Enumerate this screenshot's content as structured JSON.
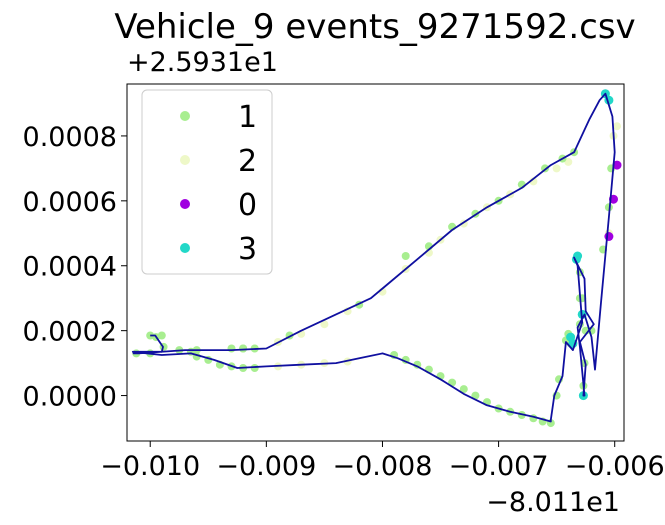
{
  "chart_data": {
    "type": "scatter",
    "title": "Vehicle_9 events_9271592.csv",
    "xlabel": "",
    "ylabel": "",
    "x_offset_label": "−8.011e1",
    "y_offset_label": "+2.5931e1",
    "xlim": [
      -0.0102,
      -0.00592
    ],
    "ylim": [
      -0.00014,
      0.00096
    ],
    "x_ticks": [
      -0.01,
      -0.009,
      -0.008,
      -0.007,
      -0.006
    ],
    "x_tick_labels": [
      "−0.010",
      "−0.009",
      "−0.008",
      "−0.007",
      "−0.006"
    ],
    "y_ticks": [
      0.0,
      0.0002,
      0.0004,
      0.0006,
      0.0008
    ],
    "y_tick_labels": [
      "0.0000",
      "0.0002",
      "0.0004",
      "0.0006",
      "0.0008"
    ],
    "grid": false,
    "legend_position": "top-left",
    "legend": [
      {
        "label": "1",
        "color": "#a8ee90"
      },
      {
        "label": "2",
        "color": "#eef8c8"
      },
      {
        "label": "0",
        "color": "#a000e0"
      },
      {
        "label": "3",
        "color": "#22d8c8"
      }
    ],
    "path_color": "#1010a0",
    "path": [
      [
        -0.01,
        0.000185
      ],
      [
        -0.009957,
        0.000185
      ],
      [
        -0.00989,
        0.00015
      ],
      [
        -0.0099,
        0.000135
      ],
      [
        -0.01015,
        0.000135
      ],
      [
        -0.0099,
        0.000125
      ],
      [
        -0.00965,
        0.00013
      ],
      [
        -0.00945,
        0.00011
      ],
      [
        -0.00925,
        8.5e-05
      ],
      [
        -0.009,
        9e-05
      ],
      [
        -0.0087,
        9.5e-05
      ],
      [
        -0.0084,
        0.0001
      ],
      [
        -0.0082,
        0.000115
      ],
      [
        -0.008,
        0.00013
      ],
      [
        -0.00787,
        0.000115
      ],
      [
        -0.0077,
        9e-05
      ],
      [
        -0.0075,
        5e-05
      ],
      [
        -0.0073,
        5e-06
      ],
      [
        -0.0071,
        -3e-05
      ],
      [
        -0.0069,
        -5e-05
      ],
      [
        -0.0067,
        -6.5e-05
      ],
      [
        -0.00655,
        -8e-05
      ],
      [
        -0.00655,
        -7.5e-05
      ],
      [
        -0.00652,
        0.0
      ],
      [
        -0.00645,
        6e-05
      ],
      [
        -0.00642,
        0.000165
      ],
      [
        -0.00636,
        0.00014
      ],
      [
        -0.00628,
        0.000225
      ],
      [
        -0.00632,
        0.0004
      ],
      [
        -0.00635,
        0.000425
      ],
      [
        -0.00626,
        0.00036
      ],
      [
        -0.00625,
        0.00026
      ],
      [
        -0.00618,
        0.00022
      ],
      [
        -0.0063,
        0.000165
      ],
      [
        -0.00625,
        9.5e-05
      ],
      [
        -0.00627,
        0.0
      ],
      [
        -0.00626,
        0.0
      ],
      [
        -0.0063,
        0.00015
      ],
      [
        -0.00632,
        0.00021
      ],
      [
        -0.00626,
        0.00025
      ],
      [
        -0.0062,
        0.00018
      ],
      [
        -0.00617,
        8e-05
      ],
      [
        -0.00612,
        0.00028
      ],
      [
        -0.00605,
        0.00055
      ],
      [
        -0.006,
        0.00075
      ],
      [
        -0.00602,
        0.00086
      ],
      [
        -0.00608,
        0.00093
      ],
      [
        -0.00613,
        0.00091
      ],
      [
        -0.00622,
        0.00085
      ],
      [
        -0.00635,
        0.00075
      ],
      [
        -0.00655,
        0.00071
      ],
      [
        -0.0068,
        0.00064
      ],
      [
        -0.0071,
        0.00058
      ],
      [
        -0.0074,
        0.00051
      ],
      [
        -0.0077,
        0.00042
      ],
      [
        -0.008,
        0.00033
      ],
      [
        -0.0081,
        0.0003
      ],
      [
        -0.0084,
        0.00025
      ],
      [
        -0.0087,
        0.0002
      ],
      [
        -0.009,
        0.000145
      ],
      [
        -0.0093,
        0.00014
      ],
      [
        -0.0097,
        0.00014
      ],
      [
        -0.0101,
        0.00013
      ],
      [
        -0.01015,
        0.00013
      ]
    ],
    "series": [
      {
        "name": "1",
        "color": "#a8ee90",
        "points": [
          [
            -0.01,
            0.000185
          ],
          [
            -0.00995,
            0.00018
          ],
          [
            -0.0099,
            0.000185
          ],
          [
            -0.009885,
            0.00015
          ],
          [
            -0.00975,
            0.00014
          ],
          [
            -0.00965,
            0.000135
          ],
          [
            -0.0096,
            0.00012
          ],
          [
            -0.0095,
            0.00011
          ],
          [
            -0.0094,
            9.5e-05
          ],
          [
            -0.0093,
            9e-05
          ],
          [
            -0.0092,
            8.5e-05
          ],
          [
            -0.0091,
            8.5e-05
          ],
          [
            -0.0093,
            0.000145
          ],
          [
            -0.0092,
            0.000145
          ],
          [
            -0.0091,
            0.000145
          ],
          [
            -0.0079,
            0.000125
          ],
          [
            -0.0078,
            0.00011
          ],
          [
            -0.0077,
            9.5e-05
          ],
          [
            -0.0076,
            8e-05
          ],
          [
            -0.0075,
            6e-05
          ],
          [
            -0.0074,
            4e-05
          ],
          [
            -0.0073,
            2e-05
          ],
          [
            -0.0072,
            0.0
          ],
          [
            -0.0071,
            -2e-05
          ],
          [
            -0.007,
            -4e-05
          ],
          [
            -0.0069,
            -5e-05
          ],
          [
            -0.0068,
            -6e-05
          ],
          [
            -0.0067,
            -7e-05
          ],
          [
            -0.00662,
            -8e-05
          ],
          [
            -0.00655,
            -8.5e-05
          ],
          [
            -0.0065,
            0.0
          ],
          [
            -0.00648,
            5e-05
          ],
          [
            -0.00642,
            0.00017
          ],
          [
            -0.0064,
            0.00019
          ],
          [
            -0.00638,
            0.00016
          ],
          [
            -0.0063,
            0.00022
          ],
          [
            -0.0063,
            0.0003
          ],
          [
            -0.0063,
            0.00038
          ],
          [
            -0.00632,
            0.00043
          ],
          [
            -0.00628,
            0.0003
          ],
          [
            -0.00625,
            0.0002
          ],
          [
            -0.00626,
            0.0001
          ],
          [
            -0.00627,
            3e-05
          ],
          [
            -0.0062,
            0.0002
          ],
          [
            -0.0061,
            0.00045
          ],
          [
            -0.00605,
            0.00058
          ],
          [
            -0.00603,
            0.0007
          ],
          [
            -0.00635,
            0.00075
          ],
          [
            -0.00645,
            0.00073
          ],
          [
            -0.0066,
            0.0007
          ],
          [
            -0.0068,
            0.00065
          ],
          [
            -0.007,
            0.0006
          ],
          [
            -0.0072,
            0.00056
          ],
          [
            -0.0074,
            0.00052
          ],
          [
            -0.0076,
            0.00046
          ],
          [
            -0.0078,
            0.00043
          ],
          [
            -0.0082,
            0.00028
          ],
          [
            -0.0088,
            0.000185
          ],
          [
            -0.0092,
            0.000145
          ],
          [
            -0.0096,
            0.00014
          ],
          [
            -0.01,
            0.00013
          ],
          [
            -0.01012,
            0.00013
          ]
        ]
      },
      {
        "name": "2",
        "color": "#eef8c8",
        "points": [
          [
            -0.0091,
            0.000145
          ],
          [
            -0.0089,
            0.000165
          ],
          [
            -0.0087,
            0.00019
          ],
          [
            -0.0085,
            0.00022
          ],
          [
            -0.0083,
            0.00026
          ],
          [
            -0.008,
            0.00032
          ],
          [
            -0.0078,
            0.00039
          ],
          [
            -0.0076,
            0.00044
          ],
          [
            -0.0075,
            0.00048
          ],
          [
            -0.0073,
            0.00053
          ],
          [
            -0.0071,
            0.00058
          ],
          [
            -0.0069,
            0.00062
          ],
          [
            -0.0067,
            0.00066
          ],
          [
            -0.0065,
            0.0007
          ],
          [
            -0.0064,
            0.00072
          ],
          [
            -0.00601,
            0.0008
          ],
          [
            -0.00598,
            0.00083
          ],
          [
            -0.0058,
            0.00086
          ],
          [
            -0.0083,
            0.000105
          ],
          [
            -0.0085,
            0.0001
          ],
          [
            -0.0087,
            9.5e-05
          ],
          [
            -0.0089,
            9e-05
          ],
          [
            -0.00605,
            0.0005
          ]
        ]
      },
      {
        "name": "0",
        "color": "#a000e0",
        "points": [
          [
            -0.00598,
            0.00071
          ],
          [
            -0.00601,
            0.000605
          ],
          [
            -0.00605,
            0.00049
          ]
        ]
      },
      {
        "name": "3",
        "color": "#22d8c8",
        "points": [
          [
            -0.00608,
            0.00093
          ],
          [
            -0.00605,
            0.00091
          ],
          [
            -0.00638,
            0.00018
          ],
          [
            -0.00636,
            0.00016
          ],
          [
            -0.00632,
            0.00043
          ],
          [
            -0.00628,
            0.00025
          ],
          [
            -0.00627,
            0.0
          ],
          [
            -0.00633,
            0.00042
          ]
        ]
      }
    ]
  }
}
